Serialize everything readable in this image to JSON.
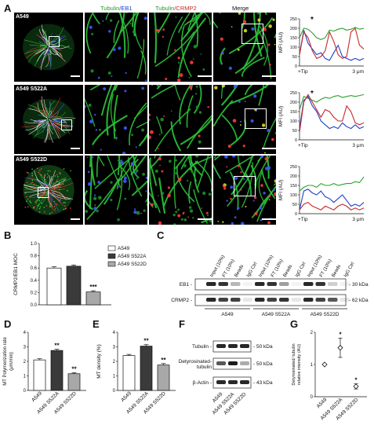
{
  "panels": {
    "a": "A",
    "b": "B",
    "c": "C",
    "d": "D",
    "e": "E",
    "f": "F",
    "g": "G"
  },
  "panelA": {
    "col_headers": {
      "tub": "Tubulin",
      "eb1": "/EB1",
      "tub2": "Tubulin",
      "crmp2": "/CRMP2",
      "merge": "Merge"
    },
    "row_labels": [
      "A549",
      "A549 S522A",
      "A549 S522D"
    ],
    "colors": {
      "tubulin": "#2ca02c",
      "eb1": "#1f3fd1",
      "crmp2": "#c62828"
    },
    "profile": {
      "ylabel": "MFI (AU)",
      "x_start": "+Tip",
      "x_end": "3 μm",
      "star": "*",
      "yticks": [
        "0",
        "50",
        "100",
        "150",
        "200",
        "250"
      ]
    }
  },
  "chart_data": [
    {
      "type": "line",
      "panel": "A (row 1)",
      "ylabel": "MFI (AU)",
      "ylim": [
        0,
        250
      ],
      "x": [
        0,
        0.2,
        0.4,
        0.6,
        0.8,
        1.0,
        1.2,
        1.4,
        1.6,
        1.8,
        2.0,
        2.2,
        2.4,
        2.6,
        2.8,
        3.0
      ],
      "series": [
        {
          "name": "Tubulin",
          "color": "#2ca02c",
          "values": [
            150,
            200,
            195,
            175,
            150,
            140,
            150,
            190,
            185,
            195,
            200,
            190,
            195,
            205,
            195,
            200
          ]
        },
        {
          "name": "EB1",
          "color": "#1f3fd1",
          "values": [
            60,
            190,
            120,
            90,
            60,
            70,
            40,
            30,
            70,
            110,
            50,
            40,
            30,
            40,
            30,
            40
          ]
        },
        {
          "name": "CRMP2",
          "color": "#c62828",
          "values": [
            60,
            180,
            150,
            80,
            40,
            50,
            80,
            180,
            130,
            60,
            40,
            50,
            180,
            200,
            110,
            90
          ]
        }
      ]
    },
    {
      "type": "line",
      "panel": "A (row 2)",
      "ylabel": "MFI (AU)",
      "ylim": [
        0,
        250
      ],
      "x": [
        0,
        0.2,
        0.4,
        0.6,
        0.8,
        1.0,
        1.2,
        1.4,
        1.6,
        1.8,
        2.0,
        2.2,
        2.4,
        2.6,
        2.8,
        3.0
      ],
      "series": [
        {
          "name": "Tubulin",
          "color": "#2ca02c",
          "values": [
            160,
            230,
            220,
            210,
            200,
            215,
            225,
            220,
            230,
            235,
            225,
            230,
            235,
            230,
            235,
            240
          ]
        },
        {
          "name": "EB1",
          "color": "#1f3fd1",
          "values": [
            60,
            210,
            230,
            180,
            150,
            100,
            80,
            60,
            70,
            60,
            90,
            70,
            60,
            80,
            60,
            70
          ]
        },
        {
          "name": "CRMP2",
          "color": "#c62828",
          "values": [
            40,
            200,
            240,
            200,
            160,
            120,
            160,
            150,
            120,
            100,
            100,
            180,
            150,
            90,
            80,
            90
          ]
        }
      ]
    },
    {
      "type": "line",
      "panel": "A (row 3)",
      "ylabel": "MFI (AU)",
      "ylim": [
        0,
        250
      ],
      "x": [
        0,
        0.2,
        0.4,
        0.6,
        0.8,
        1.0,
        1.2,
        1.4,
        1.6,
        1.8,
        2.0,
        2.2,
        2.4,
        2.6,
        2.8,
        3.0
      ],
      "series": [
        {
          "name": "Tubulin",
          "color": "#2ca02c",
          "values": [
            120,
            140,
            150,
            150,
            140,
            160,
            150,
            150,
            160,
            150,
            155,
            160,
            160,
            170,
            165,
            195
          ]
        },
        {
          "name": "EB1",
          "color": "#1f3fd1",
          "values": [
            20,
            120,
            130,
            110,
            100,
            120,
            90,
            80,
            60,
            80,
            100,
            70,
            40,
            50,
            40,
            60
          ]
        },
        {
          "name": "CRMP2",
          "color": "#c62828",
          "values": [
            20,
            50,
            60,
            40,
            30,
            20,
            40,
            30,
            20,
            40,
            50,
            40,
            20,
            30,
            20,
            30
          ]
        }
      ]
    },
    {
      "type": "bar",
      "panel": "B",
      "ylabel": "CRMP2/EB1 MOC",
      "ylim": [
        0,
        1.0
      ],
      "yticks": [
        "0.0",
        "0.2",
        "0.4",
        "0.6",
        "0.8",
        "1.0"
      ],
      "categories": [
        "A549",
        "A549 S522A",
        "A549 S522D"
      ],
      "values": [
        0.6,
        0.63,
        0.21
      ],
      "errors": [
        0.02,
        0.02,
        0.02
      ],
      "fills": [
        "#ffffff",
        "#3a3a3a",
        "#a8a8a8"
      ],
      "sig": [
        "",
        "",
        "***"
      ],
      "legend": [
        "A549",
        "A549 S522A",
        "A549 S522D"
      ]
    },
    {
      "type": "bar",
      "panel": "D",
      "ylabel": "MT Polymerization rate (μm/min)",
      "ylim": [
        0,
        4
      ],
      "yticks": [
        "0",
        "1",
        "2",
        "3",
        "4"
      ],
      "categories": [
        "A549",
        "A549 S522A",
        "A549 S522D"
      ],
      "values": [
        2.1,
        2.75,
        1.15
      ],
      "errors": [
        0.08,
        0.08,
        0.07
      ],
      "fills": [
        "#ffffff",
        "#3a3a3a",
        "#a8a8a8"
      ],
      "sig": [
        "",
        "**",
        "**"
      ]
    },
    {
      "type": "bar",
      "panel": "E",
      "ylabel": "MT density (%)",
      "ylim": [
        0,
        4
      ],
      "yticks": [
        "0",
        "1",
        "2",
        "3",
        "4"
      ],
      "categories": [
        "A549",
        "A549 S522A",
        "A549 S522D"
      ],
      "values": [
        2.4,
        3.05,
        1.75
      ],
      "errors": [
        0.08,
        0.1,
        0.1
      ],
      "fills": [
        "#ffffff",
        "#3a3a3a",
        "#a8a8a8"
      ],
      "sig": [
        "",
        "**",
        "**"
      ]
    },
    {
      "type": "scatter",
      "panel": "G",
      "ylabel": "Detyrosinated/ tubulin relative intensity (AU)",
      "ylim": [
        0,
        2
      ],
      "yticks": [
        "0",
        "1",
        "2"
      ],
      "categories": [
        "A549",
        "A549 S522A",
        "A549 S522D"
      ],
      "values": [
        1.0,
        1.52,
        0.32
      ],
      "errors": [
        0,
        0.3,
        0.08
      ],
      "sig": [
        "",
        "*",
        "*"
      ]
    }
  ],
  "panelC": {
    "lane_labels": [
      "Input (10%)",
      "FT (10%)",
      "Beads",
      "IgG Ctrl",
      "Input (10%)",
      "FT (10%)",
      "Beads",
      "IgG Ctrl",
      "Input (10%)",
      "FT (10%)",
      "Beads",
      "IgG Ctrl"
    ],
    "rows": [
      {
        "name": "EB1",
        "kda": "- 30 kDa"
      },
      {
        "name": "CRMP2",
        "kda": "- 62 kDa"
      }
    ],
    "groups": [
      "A549",
      "A549 S522A",
      "A549 S522D"
    ]
  },
  "panelF": {
    "rows": [
      {
        "name": "Tubulin",
        "kda": "- 50 kDa"
      },
      {
        "name": "Detyrosinated-\ntubulin",
        "kda": "- 50 kDa"
      },
      {
        "name": "β-Actin",
        "kda": "- 43 kDa"
      }
    ],
    "lanes": [
      "A549",
      "A549 S522A",
      "A549 S522D"
    ]
  }
}
